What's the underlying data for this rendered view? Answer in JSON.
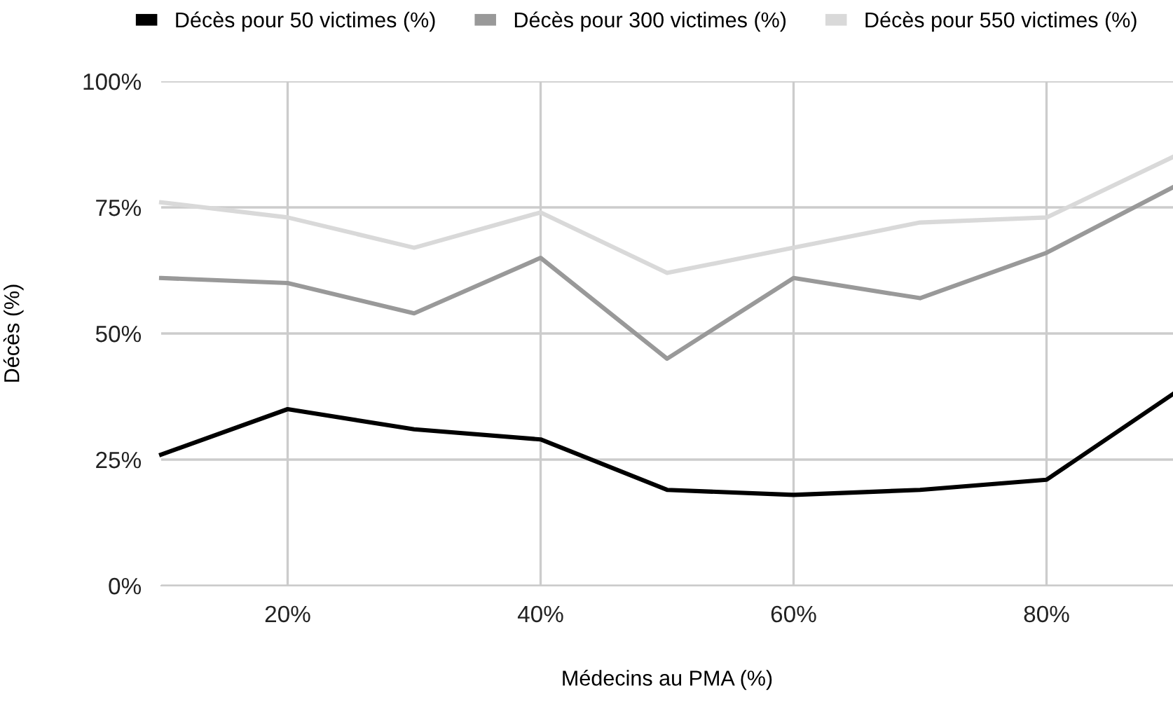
{
  "chart_data": {
    "type": "line",
    "xlabel": "Médecins au PMA (%)",
    "ylabel": "Décès (%)",
    "x": [
      10,
      20,
      30,
      40,
      50,
      60,
      70,
      80,
      90
    ],
    "series": [
      {
        "name": "Décès pour 50 victimes (%)",
        "color": "#000000",
        "values": [
          26,
          35,
          31,
          29,
          19,
          18,
          19,
          21,
          38
        ]
      },
      {
        "name": "Décès pour 300 victimes (%)",
        "color": "#999999",
        "values": [
          61,
          60,
          54,
          65,
          45,
          61,
          57,
          66,
          79
        ]
      },
      {
        "name": "Décès pour 550 victimes (%)",
        "color": "#d9d9d9",
        "values": [
          76,
          73,
          67,
          74,
          62,
          67,
          72,
          73,
          85
        ]
      }
    ],
    "xlim": [
      10,
      90
    ],
    "xticks": [
      {
        "value": 20,
        "label": "20%"
      },
      {
        "value": 40,
        "label": "40%"
      },
      {
        "value": 60,
        "label": "60%"
      },
      {
        "value": 80,
        "label": "80%"
      }
    ],
    "ylim": [
      0,
      100
    ],
    "yticks": [
      {
        "value": 0,
        "label": "0%"
      },
      {
        "value": 25,
        "label": "25%"
      },
      {
        "value": 50,
        "label": "50%"
      },
      {
        "value": 75,
        "label": "75%"
      },
      {
        "value": 100,
        "label": "100%"
      }
    ],
    "grid": true,
    "legend": "top",
    "marker": "none",
    "line_style": "solid"
  }
}
